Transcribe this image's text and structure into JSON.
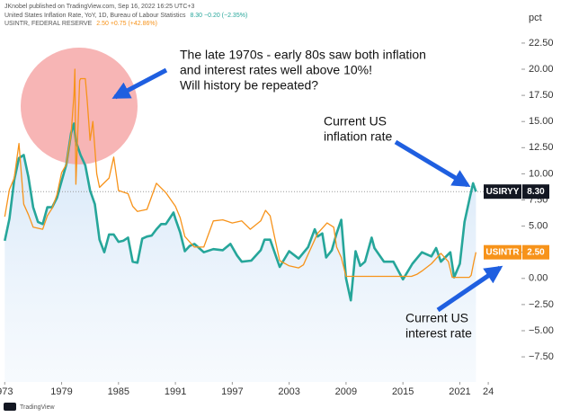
{
  "chart_data": {
    "type": "line",
    "header": "JKnobel published on TradingView.com, Sep 16, 2022 16:25 UTC+3",
    "footer": "TradingView",
    "axis_label": "pct",
    "xlim": [
      1972.5,
      2027.5
    ],
    "ylim": [
      -9.9,
      24.9
    ],
    "xticks": [
      {
        "value": 1973,
        "label": "973"
      },
      1979,
      1985,
      1991,
      1997,
      2003,
      2009,
      2015,
      2021,
      {
        "value": 2024,
        "label": "24"
      }
    ],
    "yticks": [
      {
        "value": 22.5,
        "label": "22.50"
      },
      {
        "value": 20,
        "label": "20.00"
      },
      {
        "value": 17.5,
        "label": "17.50"
      },
      {
        "value": 15,
        "label": "15.00"
      },
      {
        "value": 12.5,
        "label": "12.50"
      },
      {
        "value": 10,
        "label": "10.00"
      },
      {
        "value": 7.5,
        "label": "7.50"
      },
      {
        "value": 5,
        "label": "5.00"
      },
      {
        "value": 2.5,
        "label": "2.50"
      },
      {
        "value": 0,
        "label": "0.00"
      },
      {
        "value": -2.5,
        "label": "−2.50"
      },
      {
        "value": -5,
        "label": "−5.00"
      },
      {
        "value": -7.5,
        "label": "−7.50"
      }
    ],
    "series": [
      {
        "name": "United States Inflation Rate, YoY, 1D, Bureau of Labour Statistics",
        "legend_stats": "8.30  −0.20 (−2.35%)",
        "ticker": "USIRYY",
        "price_tag": "8.30",
        "color": "#26a69a",
        "x": [
          1973,
          1973.5,
          1974,
          1974.5,
          1975,
          1975.5,
          1976,
          1976.5,
          1977,
          1977.5,
          1978,
          1978.5,
          1979,
          1979.5,
          1980,
          1980.3,
          1980.5,
          1981,
          1981.5,
          1982,
          1982.5,
          1983,
          1983.5,
          1984,
          1984.5,
          1985,
          1985.5,
          1986,
          1986.5,
          1987,
          1987.5,
          1988,
          1988.5,
          1989,
          1989.5,
          1990,
          1990.8,
          1991,
          1991.5,
          1992,
          1992.5,
          1993,
          1994,
          1995,
          1996,
          1996.8,
          1997.5,
          1998,
          1999,
          2000,
          2000.4,
          2001,
          2002,
          2003,
          2004,
          2005,
          2005.7,
          2006,
          2006.5,
          2006.9,
          2007.5,
          2008,
          2008.5,
          2009,
          2009.5,
          2010,
          2010.5,
          2011,
          2011.7,
          2012,
          2013,
          2014,
          2015,
          2016,
          2017,
          2018,
          2018.5,
          2019,
          2020,
          2020.4,
          2021,
          2021.5,
          2022,
          2022.4,
          2022.7
        ],
        "values": [
          3.6,
          5.7,
          9.4,
          11.5,
          11.8,
          9.7,
          6.8,
          5.4,
          5.2,
          6.8,
          6.8,
          7.7,
          9.3,
          10.9,
          13.9,
          14.8,
          13.1,
          11.8,
          10.8,
          8.4,
          7.1,
          3.7,
          2.5,
          4.2,
          4.2,
          3.5,
          3.6,
          3.9,
          1.6,
          1.5,
          3.8,
          4.0,
          4.1,
          4.7,
          5.2,
          5.2,
          6.3,
          5.7,
          4.4,
          2.6,
          3.1,
          3.3,
          2.5,
          2.8,
          2.7,
          3.3,
          2.2,
          1.6,
          1.7,
          2.7,
          3.7,
          3.7,
          1.1,
          2.6,
          1.9,
          3.0,
          4.7,
          4.0,
          4.3,
          2.0,
          2.7,
          4.3,
          5.6,
          0.0,
          -2.1,
          2.6,
          1.2,
          1.6,
          3.9,
          2.9,
          1.6,
          1.6,
          -0.1,
          1.4,
          2.5,
          2.1,
          2.9,
          1.6,
          2.5,
          0.1,
          1.4,
          5.4,
          7.5,
          9.1,
          8.3
        ]
      },
      {
        "name": "USINTR, FEDERAL RESERVE",
        "legend_stats": "2.50  +0.75 (+42.86%)",
        "ticker": "USINTR",
        "price_tag": "2.50",
        "color": "#f7931a",
        "x": [
          1973,
          1973.5,
          1974,
          1974.5,
          1975,
          1975.5,
          1976,
          1977,
          1977.5,
          1978,
          1978.5,
          1979,
          1979.5,
          1980,
          1980.3,
          1980.4,
          1980.5,
          1980.9,
          1981,
          1981.5,
          1981.7,
          1982,
          1982.3,
          1982.7,
          1983,
          1984,
          1984.5,
          1985,
          1986,
          1986.5,
          1987,
          1988,
          1989,
          1990,
          1991,
          1991.5,
          1992,
          1993,
          1994,
          1995,
          1996,
          1997,
          1998,
          1998.9,
          2000,
          2000.5,
          2001,
          2001.5,
          2002,
          2003,
          2004,
          2004.5,
          2005,
          2006,
          2007,
          2007.7,
          2008,
          2008.5,
          2009,
          2015.9,
          2016.5,
          2017,
          2018,
          2019,
          2019.8,
          2020.2,
          2022,
          2022.2,
          2022.5,
          2022.7
        ],
        "values": [
          5.9,
          8.5,
          9.6,
          12.9,
          7.1,
          6.1,
          4.9,
          4.7,
          6.0,
          6.7,
          8.0,
          10.1,
          10.9,
          13.8,
          17.6,
          20.0,
          9.0,
          18.9,
          19.1,
          19.1,
          17.0,
          13.2,
          15.0,
          10.0,
          8.7,
          9.6,
          11.6,
          8.4,
          8.1,
          6.9,
          6.4,
          6.6,
          9.1,
          8.2,
          6.9,
          5.8,
          4.0,
          3.0,
          3.0,
          5.5,
          5.6,
          5.3,
          5.5,
          4.7,
          5.5,
          6.5,
          5.98,
          3.8,
          1.7,
          1.2,
          1.0,
          1.3,
          2.3,
          4.3,
          5.3,
          4.9,
          3.0,
          2.0,
          0.2,
          0.2,
          0.4,
          0.7,
          1.4,
          2.4,
          1.6,
          0.1,
          0.1,
          0.3,
          1.7,
          2.5
        ]
      }
    ],
    "annotations": [
      {
        "lines": [
          "The late 1970s - early 80s saw both inflation",
          "and interest rates well above 10%!",
          "Will history be repeated?"
        ]
      },
      {
        "lines": [
          "Current US",
          "inflation rate"
        ]
      },
      {
        "lines": [
          "Current US",
          "interest rate"
        ]
      }
    ]
  }
}
